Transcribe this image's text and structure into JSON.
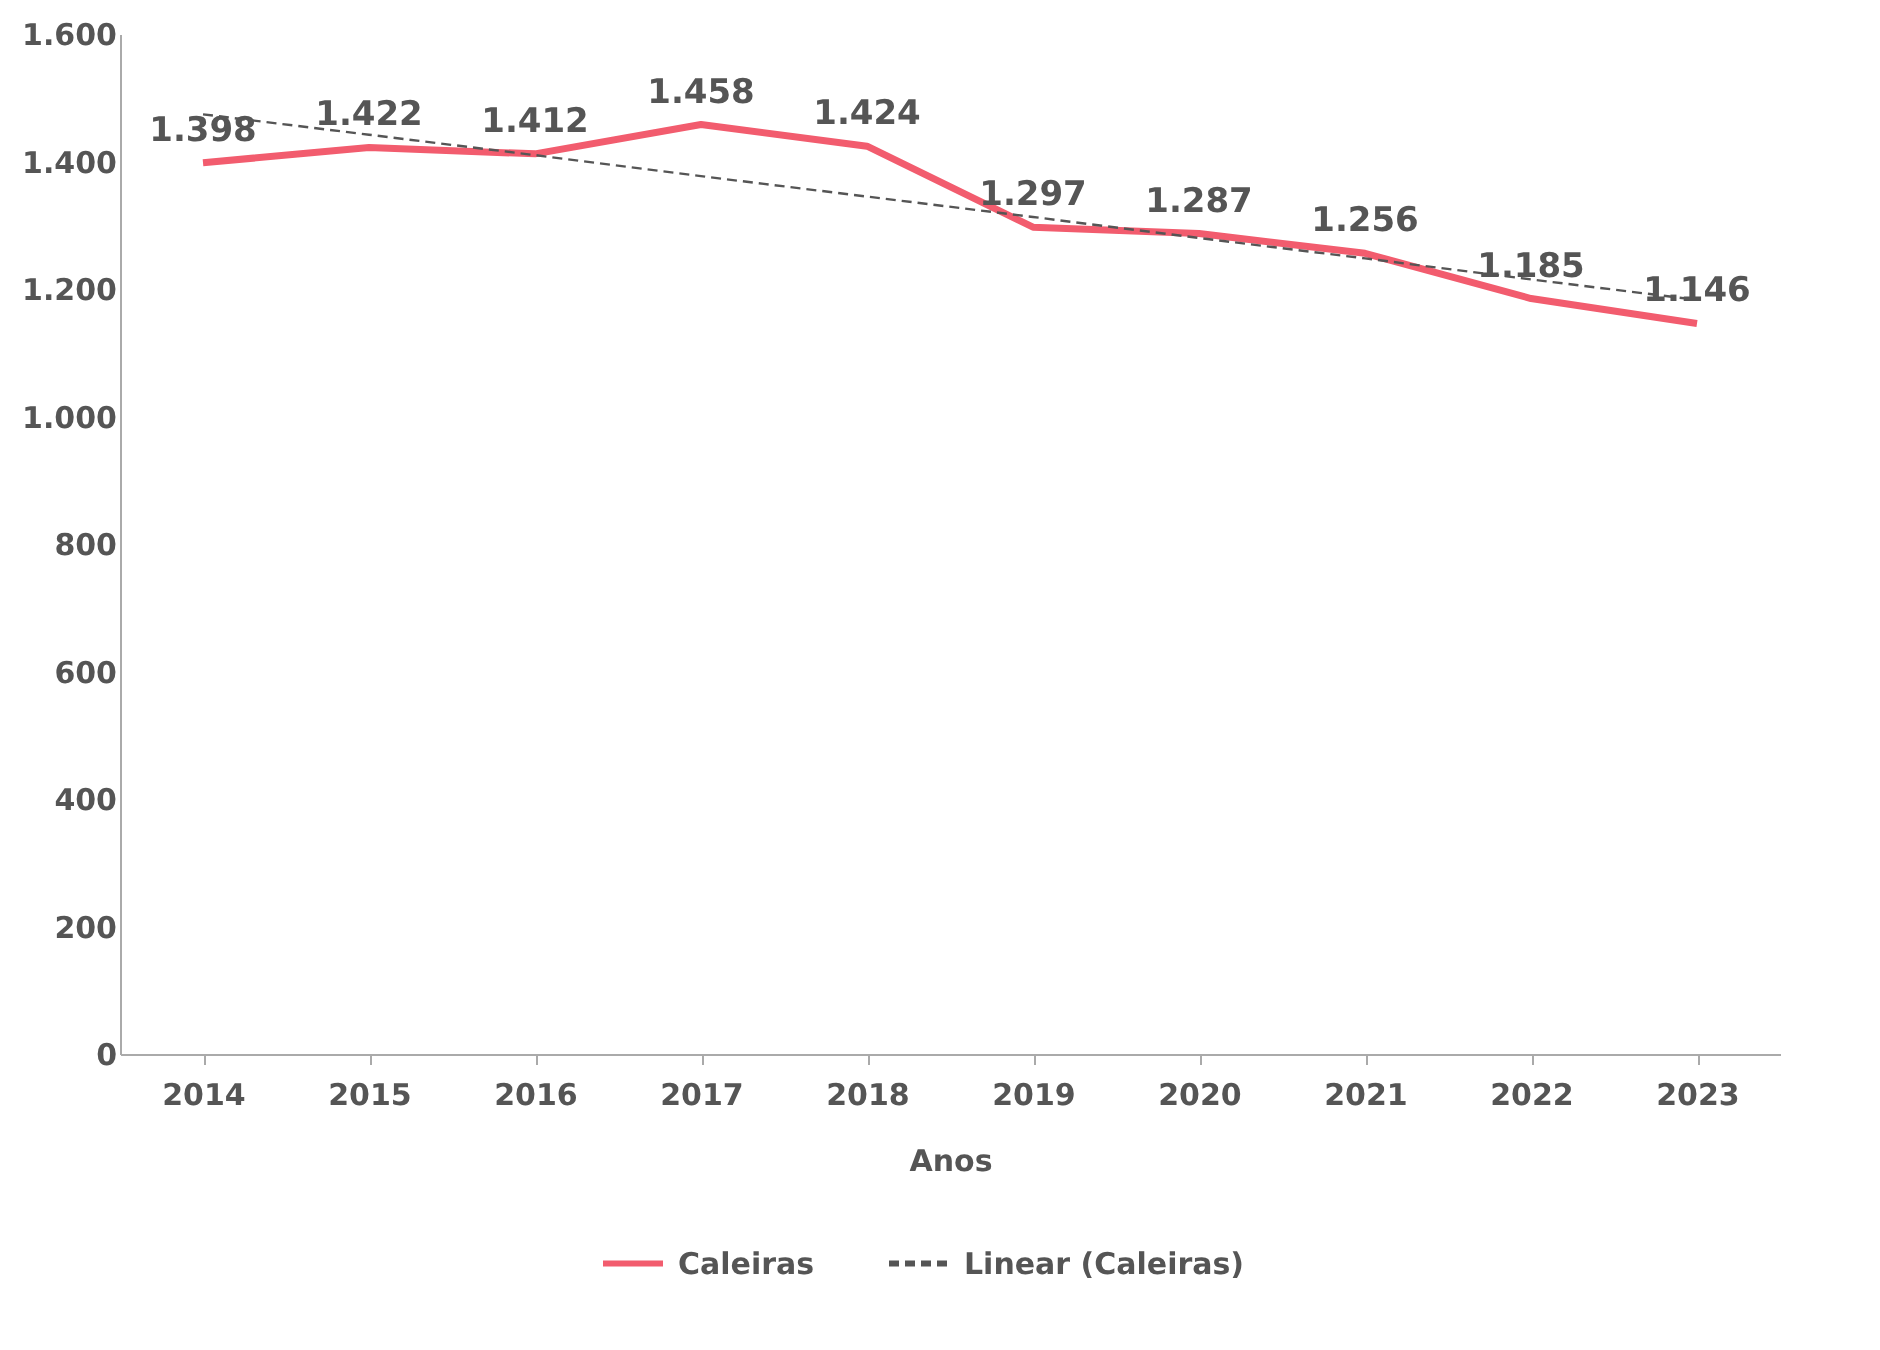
{
  "chart_data": {
    "type": "line",
    "xlabel": "Anos",
    "categories": [
      "2014",
      "2015",
      "2016",
      "2017",
      "2018",
      "2019",
      "2020",
      "2021",
      "2022",
      "2023"
    ],
    "series": [
      {
        "name": "Caleiras",
        "color": "#f25c6e",
        "line_style": "solid",
        "values": [
          1398,
          1422,
          1412,
          1458,
          1424,
          1297,
          1287,
          1256,
          1185,
          1146
        ],
        "value_labels": [
          "1.398",
          "1.422",
          "1.412",
          "1.458",
          "1.424",
          "1.297",
          "1.287",
          "1.256",
          "1.185",
          "1.146"
        ]
      },
      {
        "name": "Linear (Caleiras)",
        "type": "line",
        "color": "#555555",
        "line_style": "dashed",
        "values": [
          1474,
          1442,
          1410,
          1377,
          1345,
          1313,
          1280,
          1248,
          1215,
          1183
        ]
      }
    ],
    "ylim": [
      0,
      1600
    ],
    "yticks": [
      0,
      {
        "value": 200,
        "label": "200"
      },
      {
        "value": 400,
        "label": "400"
      },
      {
        "value": 600,
        "label": "600"
      },
      {
        "value": 800,
        "label": "800"
      },
      {
        "value": 1000,
        "label": "1.000"
      },
      {
        "value": 1200,
        "label": "1.200"
      },
      {
        "value": 1400,
        "label": "1.400"
      },
      {
        "value": 1600,
        "label": "1.600"
      }
    ],
    "grid": false,
    "legend": "bottom",
    "marker": "none"
  }
}
